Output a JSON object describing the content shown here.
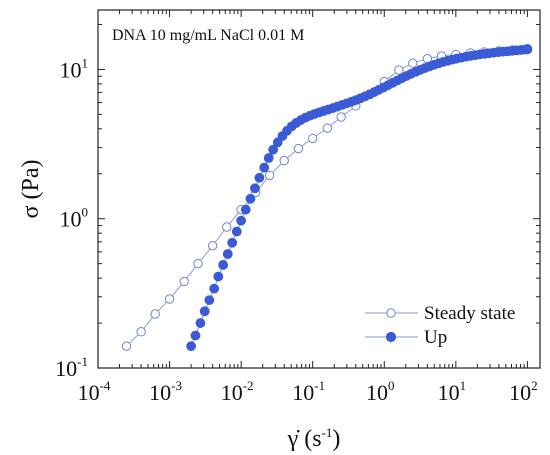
{
  "chart_data": {
    "type": "scatter",
    "x_scale": "log",
    "y_scale": "log",
    "xlim": [
      0.0001,
      150
    ],
    "ylim": [
      0.1,
      25
    ],
    "x_ticks": [
      {
        "value": 0.0001,
        "base": "10",
        "exp": "-4"
      },
      {
        "value": 0.001,
        "base": "10",
        "exp": "-3"
      },
      {
        "value": 0.01,
        "base": "10",
        "exp": "-2"
      },
      {
        "value": 0.1,
        "base": "10",
        "exp": "-1"
      },
      {
        "value": 1,
        "base": "10",
        "exp": "0"
      },
      {
        "value": 10,
        "base": "10",
        "exp": "1"
      },
      {
        "value": 100,
        "base": "10",
        "exp": "2"
      }
    ],
    "y_ticks": [
      {
        "value": 0.1,
        "base": "10",
        "exp": "-1"
      },
      {
        "value": 1,
        "base": "10",
        "exp": "0"
      },
      {
        "value": 10,
        "base": "10",
        "exp": "1"
      }
    ],
    "annotation": "DNA 10 mg/mL NaCl 0.01 M",
    "xlabel": {
      "main": "γ̇ (s",
      "exp": "-1",
      "close": ")"
    },
    "ylabel": "σ (Pa)",
    "legend_position": "bottom-right",
    "series": [
      {
        "name": "Steady state",
        "marker": "open-circle",
        "color": "#3b5bd6",
        "line_color": "#8a9ad8",
        "x": [
          0.00025,
          0.0004,
          0.00063,
          0.001,
          0.0016,
          0.0025,
          0.004,
          0.0063,
          0.01,
          0.016,
          0.025,
          0.04,
          0.063,
          0.1,
          0.16,
          0.25,
          0.4,
          0.63,
          1,
          1.6,
          2.5,
          4,
          6.3,
          10,
          16,
          25,
          40,
          63,
          100
        ],
        "y": [
          0.14,
          0.175,
          0.23,
          0.29,
          0.38,
          0.5,
          0.66,
          0.88,
          1.15,
          1.5,
          1.95,
          2.45,
          2.95,
          3.45,
          4.05,
          4.8,
          5.7,
          6.8,
          8.3,
          9.9,
          11.0,
          11.8,
          12.3,
          12.6,
          12.9,
          13.1,
          13.3,
          13.5,
          13.8
        ]
      },
      {
        "name": "Up",
        "marker": "filled-circle",
        "color": "#3b5bd6",
        "line_color": "#8a9ad8",
        "x": [
          0.002,
          0.0023,
          0.0027,
          0.0031,
          0.0036,
          0.0042,
          0.0048,
          0.0056,
          0.0065,
          0.0075,
          0.0087,
          0.01,
          0.0116,
          0.0135,
          0.0156,
          0.018,
          0.021,
          0.0243,
          0.028,
          0.0325,
          0.0378,
          0.0438,
          0.0507,
          0.0589,
          0.0682,
          0.079,
          0.0917,
          0.106,
          0.123,
          0.143,
          0.165,
          0.192,
          0.222,
          0.258,
          0.299,
          0.346,
          0.401,
          0.465,
          0.539,
          0.625,
          0.724,
          0.839,
          0.973,
          1.13,
          1.31,
          1.52,
          1.76,
          2.04,
          2.36,
          2.74,
          3.17,
          3.68,
          4.26,
          4.94,
          5.73,
          6.64,
          7.7,
          8.92,
          10.3,
          12,
          13.9,
          16.1,
          18.7,
          21.6,
          25.1,
          29.1,
          33.7,
          39.1,
          45.3,
          52.5,
          60.8,
          70.5,
          81.7,
          94.7,
          100
        ],
        "y": [
          0.14,
          0.165,
          0.2,
          0.24,
          0.285,
          0.34,
          0.41,
          0.49,
          0.58,
          0.69,
          0.82,
          0.97,
          1.15,
          1.36,
          1.6,
          1.88,
          2.2,
          2.55,
          2.9,
          3.25,
          3.58,
          3.88,
          4.15,
          4.38,
          4.58,
          4.75,
          4.9,
          5.03,
          5.15,
          5.27,
          5.39,
          5.51,
          5.64,
          5.78,
          5.92,
          6.07,
          6.23,
          6.41,
          6.6,
          6.82,
          7.05,
          7.3,
          7.56,
          7.84,
          8.13,
          8.43,
          8.73,
          9.03,
          9.33,
          9.63,
          9.92,
          10.2,
          10.47,
          10.73,
          10.98,
          11.21,
          11.43,
          11.63,
          11.82,
          12.0,
          12.17,
          12.32,
          12.47,
          12.6,
          12.72,
          12.83,
          12.94,
          13.04,
          13.14,
          13.23,
          13.32,
          13.41,
          13.5,
          13.58,
          13.62
        ]
      }
    ]
  }
}
